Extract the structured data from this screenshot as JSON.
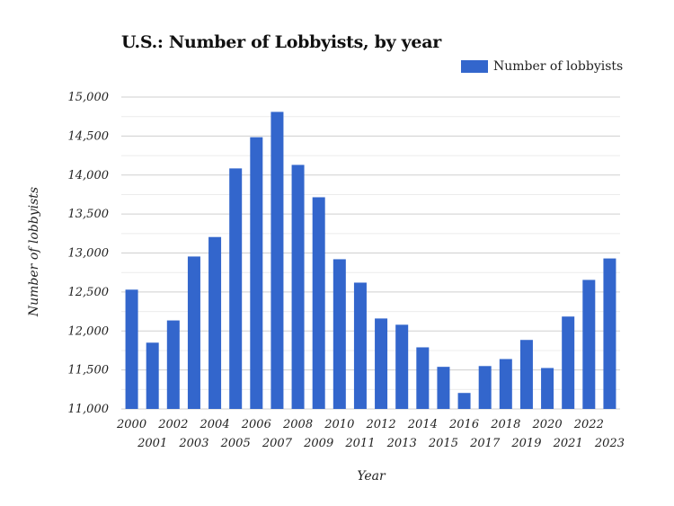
{
  "chart_data": {
    "type": "bar",
    "title": "U.S.: Number of Lobbyists, by year",
    "xlabel": "Year",
    "ylabel": "Number of lobbyists",
    "ylim": [
      11000,
      15000
    ],
    "yticks": [
      11000,
      11500,
      12000,
      12500,
      13000,
      13500,
      14000,
      14500,
      15000
    ],
    "ytick_labels": [
      "11,000",
      "11,500",
      "12,000",
      "12,500",
      "13,000",
      "13,500",
      "14,000",
      "14,500",
      "15,000"
    ],
    "grid": true,
    "legend_position": "top-right",
    "categories": [
      "2000",
      "2001",
      "2002",
      "2003",
      "2004",
      "2005",
      "2006",
      "2007",
      "2008",
      "2009",
      "2010",
      "2011",
      "2012",
      "2013",
      "2014",
      "2015",
      "2016",
      "2017",
      "2018",
      "2019",
      "2020",
      "2021",
      "2022",
      "2023"
    ],
    "series": [
      {
        "name": "Number of lobbyists",
        "color": "#3366cc",
        "values": [
          12530,
          11850,
          12135,
          12955,
          13205,
          14085,
          14485,
          14810,
          14130,
          13715,
          12920,
          12620,
          12160,
          12080,
          11790,
          11540,
          11205,
          11550,
          11640,
          11885,
          11525,
          12185,
          12655,
          12930
        ]
      }
    ]
  }
}
